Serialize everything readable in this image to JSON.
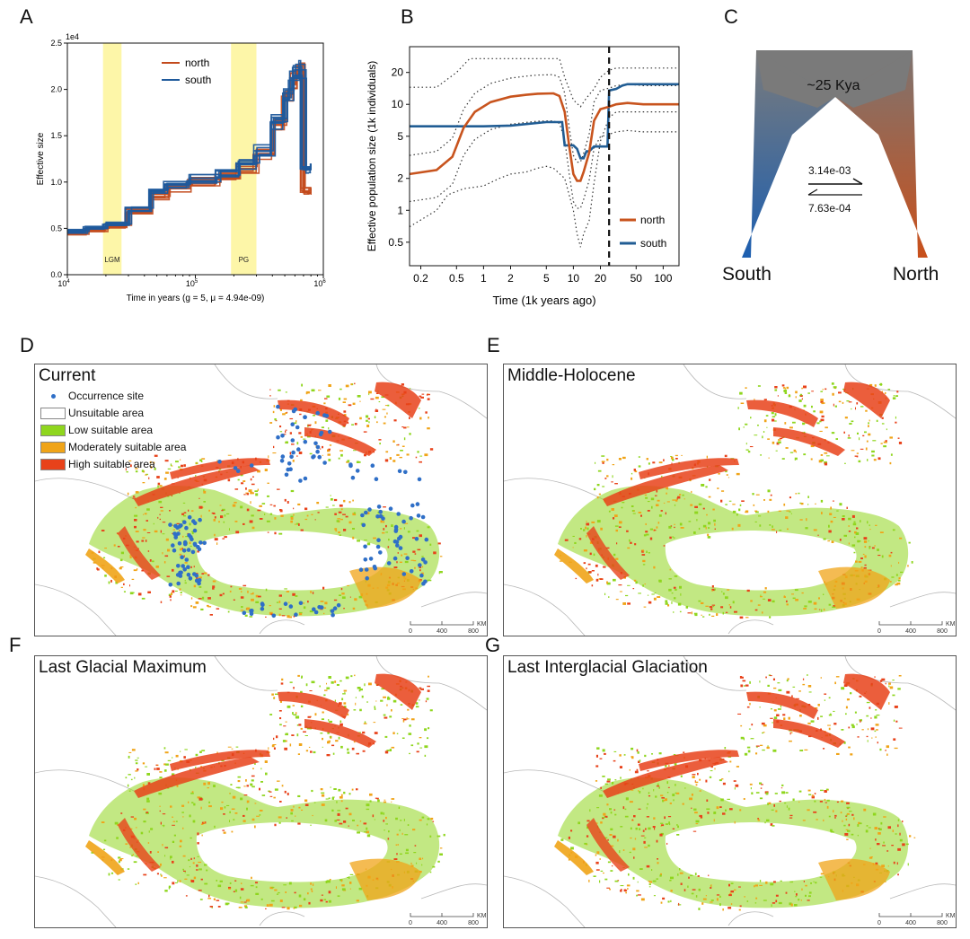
{
  "panels": {
    "A": "A",
    "B": "B",
    "C": "C",
    "D": "D",
    "E": "E",
    "F": "F",
    "G": "G"
  },
  "colors": {
    "north": "#c34a1c",
    "south": "#1f5a9c",
    "north_b": "#c8541e",
    "south_b": "#215d94",
    "highlight": "#fdf6a8",
    "high": "#e8421a",
    "moderate": "#f0a418",
    "low": "#8fd61e",
    "occurrence": "#2f6fc7"
  },
  "chart_data": [
    {
      "panel": "A",
      "type": "line",
      "step": true,
      "x_scale": "log",
      "xlim": [
        10000,
        1000000
      ],
      "ylim": [
        0,
        25000
      ],
      "y_multiplier_label": "1e4",
      "xlabel": "Time in years (g = 5, μ = 4.94e-09)",
      "ylabel": "Effective size",
      "ytick_labels": [
        "0.0",
        "0.5",
        "1.0",
        "1.5",
        "2.0",
        "2.5"
      ],
      "ytick_values": [
        0,
        5000,
        10000,
        15000,
        20000,
        25000
      ],
      "xtick_labels": [
        {
          "base": "10",
          "exp": "4",
          "value": 10000
        },
        {
          "base": "10",
          "exp": "5",
          "value": 100000
        },
        {
          "base": "10",
          "exp": "6",
          "value": 1000000
        }
      ],
      "legend": [
        {
          "name": "north",
          "color_key": "north"
        },
        {
          "name": "south",
          "color_key": "south"
        }
      ],
      "legend_position": "top-left",
      "highlight_bands": [
        {
          "label": "LGM",
          "range": [
            19000,
            26500
          ]
        },
        {
          "label": "PG",
          "range": [
            190000,
            300000
          ]
        }
      ],
      "series": [
        {
          "name": "north",
          "x": [
            10000,
            14000,
            20000,
            30000,
            45000,
            60000,
            90000,
            150000,
            220000,
            300000,
            400000,
            500000,
            560000,
            620000,
            700000,
            800000
          ],
          "y": [
            4500,
            4800,
            5300,
            6800,
            8500,
            9300,
            10000,
            10700,
            11500,
            13000,
            16000,
            19000,
            21000,
            22000,
            9000,
            9000
          ]
        },
        {
          "name": "south",
          "x": [
            10000,
            14000,
            20000,
            30000,
            45000,
            60000,
            90000,
            150000,
            220000,
            300000,
            400000,
            500000,
            560000,
            620000,
            700000,
            800000
          ],
          "y": [
            4700,
            5000,
            5500,
            7200,
            8900,
            9700,
            10300,
            11000,
            11900,
            13400,
            16500,
            19500,
            21500,
            22200,
            11500,
            11500
          ]
        }
      ]
    },
    {
      "panel": "B",
      "type": "line",
      "x_scale": "log",
      "y_scale": "log",
      "xlim": [
        0.15,
        150
      ],
      "ylim": [
        0.3,
        35
      ],
      "xlabel": "Time (1k years ago)",
      "ylabel": "Effective population size (1k individuals)",
      "xtick_labels": [
        "0.2",
        "0.5",
        "1",
        "2",
        "5",
        "10",
        "20",
        "50",
        "100"
      ],
      "xtick_values": [
        0.2,
        0.5,
        1,
        2,
        5,
        10,
        20,
        50,
        100
      ],
      "ytick_labels": [
        "0.5",
        "1",
        "2",
        "5",
        "10",
        "20"
      ],
      "ytick_values": [
        0.5,
        1,
        2,
        5,
        10,
        20
      ],
      "vline": 25,
      "legend": [
        {
          "name": "north",
          "color_key": "north_b"
        },
        {
          "name": "south",
          "color_key": "south_b"
        }
      ],
      "legend_position": "bottom-right",
      "series": [
        {
          "name": "north",
          "x": [
            0.15,
            0.3,
            0.45,
            0.6,
            0.8,
            1.2,
            2,
            3,
            4,
            6,
            7,
            8,
            9,
            10,
            11,
            12,
            13,
            15,
            17,
            20,
            25,
            30,
            40,
            60,
            100,
            150
          ],
          "y": [
            2.2,
            2.4,
            3.2,
            6.0,
            8.5,
            10.5,
            11.8,
            12.3,
            12.6,
            12.7,
            12.0,
            8.5,
            4.0,
            2.2,
            1.9,
            1.9,
            2.3,
            3.5,
            7.0,
            9.0,
            9.5,
            10.0,
            10.3,
            10.0,
            10.0,
            10.0
          ]
        },
        {
          "name": "south",
          "x": [
            0.15,
            0.5,
            1,
            2,
            5,
            7.5,
            8,
            10,
            11,
            12,
            13,
            14,
            15,
            17,
            20,
            24,
            25,
            30,
            35,
            40,
            60,
            100,
            150
          ],
          "y": [
            6.2,
            6.2,
            6.2,
            6.3,
            6.8,
            6.8,
            4.1,
            4.1,
            3.8,
            3.1,
            3.1,
            3.6,
            3.6,
            4.0,
            4.0,
            4.0,
            13.5,
            14.0,
            15.0,
            15.5,
            15.5,
            15.5,
            15.5
          ]
        },
        {
          "name": "ci_upper",
          "x": [
            0.15,
            0.3,
            0.5,
            0.7,
            1,
            2,
            3,
            5,
            7,
            8,
            10,
            12,
            14,
            17,
            20,
            25,
            30,
            50,
            100,
            150
          ],
          "y": [
            14.5,
            14.5,
            20.0,
            27.0,
            27.0,
            27.0,
            27.0,
            27.0,
            27.0,
            18.0,
            11.0,
            9.5,
            11.5,
            14.0,
            18.0,
            21.0,
            22.0,
            22.0,
            22.0,
            22.0
          ]
        },
        {
          "name": "ci_lower",
          "x": [
            0.15,
            0.3,
            0.4,
            0.6,
            1,
            1.5,
            2,
            3,
            4,
            5,
            6,
            8,
            10,
            11,
            12,
            13,
            15,
            17,
            20,
            25,
            30,
            50,
            100,
            150
          ],
          "y": [
            0.7,
            1.0,
            1.4,
            1.6,
            1.7,
            2.0,
            2.2,
            2.3,
            2.5,
            2.6,
            2.5,
            2.0,
            1.0,
            0.6,
            0.45,
            0.6,
            0.8,
            1.8,
            4.5,
            7.5,
            8.5,
            8.5,
            8.5,
            8.5
          ]
        }
      ]
    }
  ],
  "panelC": {
    "label_top": "~25 Kya",
    "rate_forward": "3.14e-03",
    "rate_back": "7.63e-04",
    "left_label": "South",
    "right_label": "North"
  },
  "maps": {
    "D": {
      "title": "Current"
    },
    "E": {
      "title": "Middle-Holocene"
    },
    "F": {
      "title": "Last Glacial Maximum"
    },
    "G": {
      "title": "Last Interglacial Glaciation"
    },
    "legend": {
      "occurrence": "Occurrence site",
      "unsuitable": "Unsuitable area",
      "low": "Low suitable area",
      "moderate": "Moderately suitable area",
      "high": "High suitable area"
    },
    "scale": {
      "unit": "KM",
      "ticks": [
        "0",
        "400",
        "800"
      ]
    }
  }
}
